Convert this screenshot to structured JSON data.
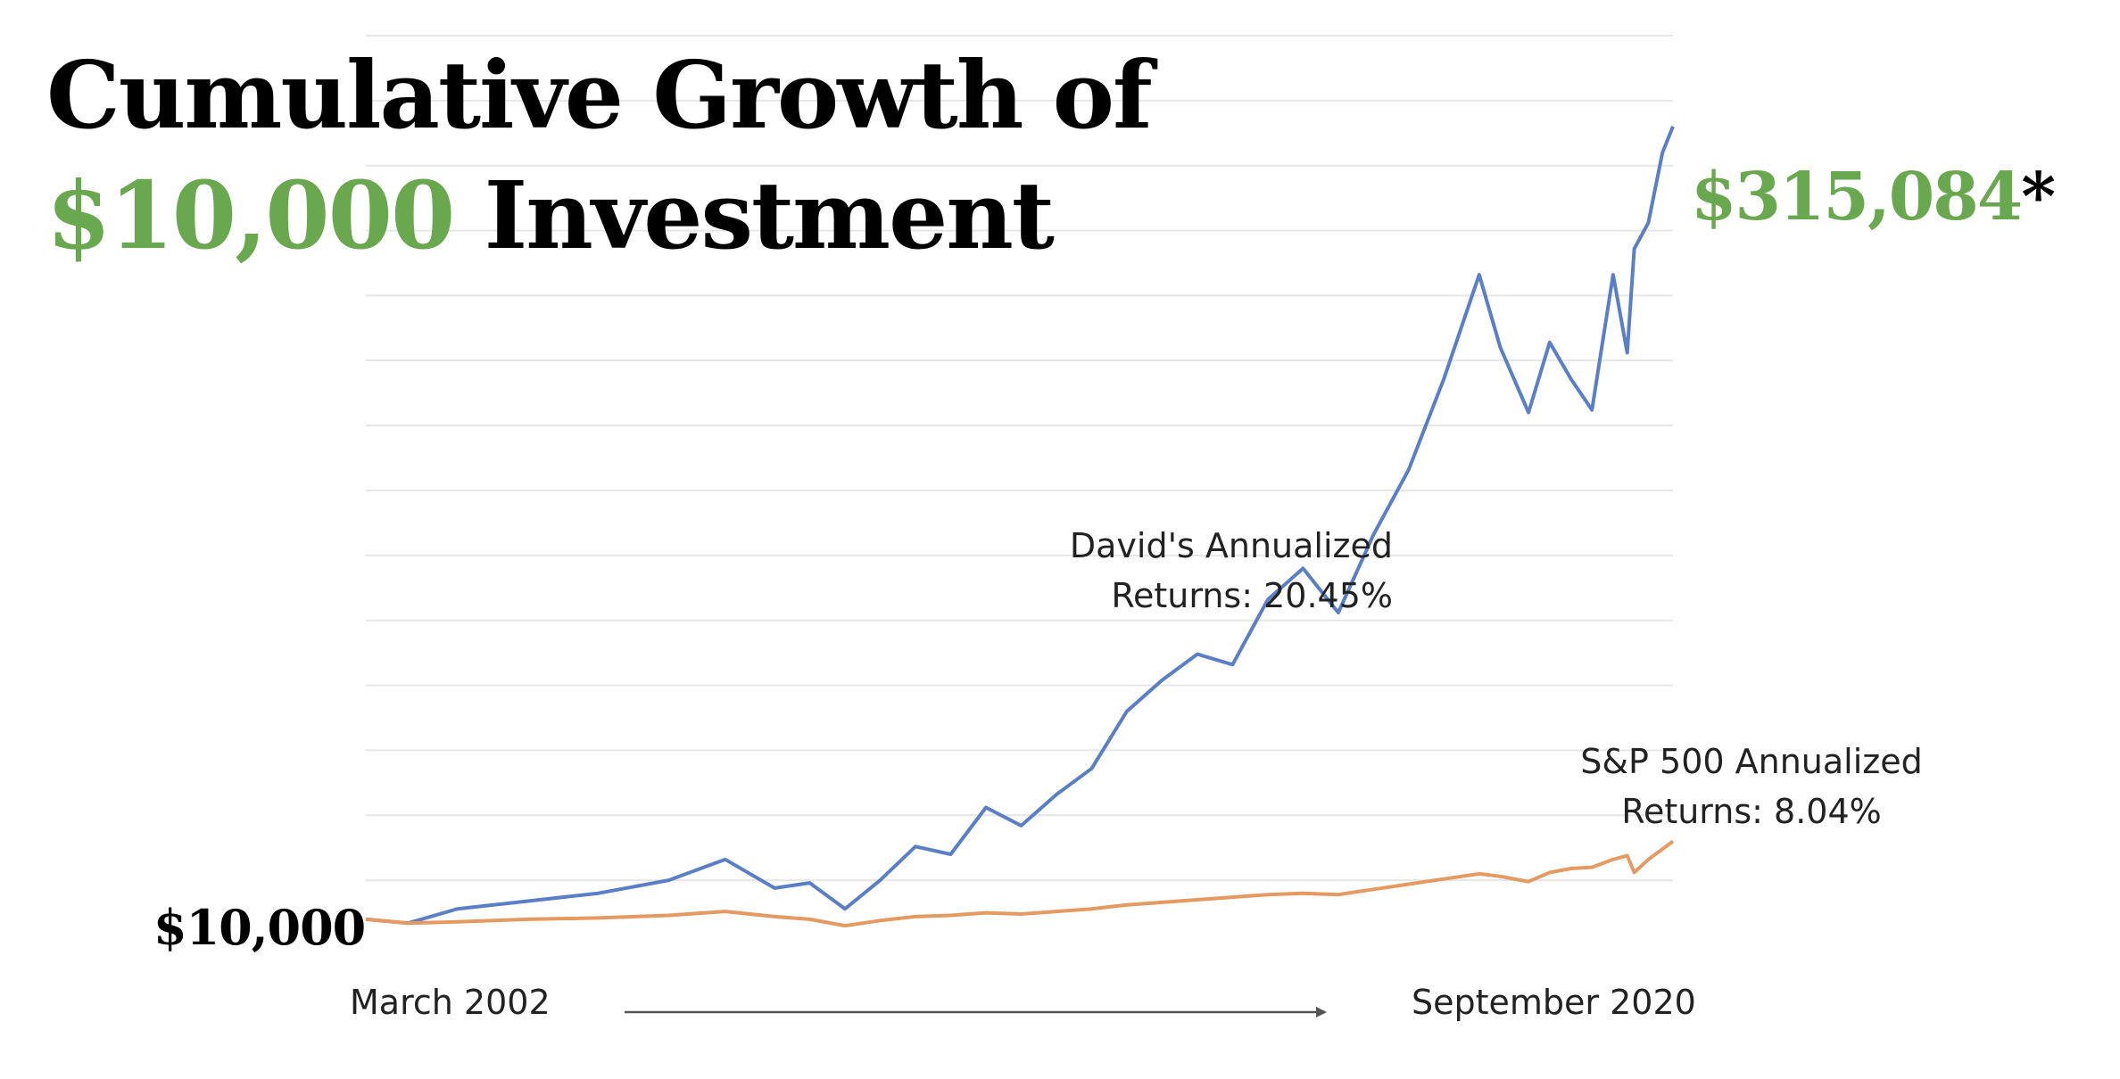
{
  "title": {
    "line1": "Cumulative Growth of",
    "line2_amount": "$10,000",
    "line2_rest": "Investment"
  },
  "end_value": {
    "amount": "$315,084",
    "asterisk": "*"
  },
  "start_value": "$10,000",
  "annotations": {
    "david_line1": "David's Annualized",
    "david_line2": "Returns: 20.45%",
    "sp_line1": "S&P 500 Annualized",
    "sp_line2": "Returns: 8.04%"
  },
  "x_axis": {
    "start_label": "March 2002",
    "end_label": "September 2020"
  },
  "colors": {
    "david": "#5b7fc7",
    "sp500": "#e59a62",
    "accent_green": "#6aa84f",
    "grid": "#e6e6e6",
    "arrow": "#555555"
  },
  "chart_data": {
    "type": "line",
    "title": "Cumulative Growth of $10,000 Investment",
    "xlabel": "",
    "ylabel": "",
    "x_range": [
      "March 2002",
      "September 2020"
    ],
    "ylim": [
      0,
      350000
    ],
    "grid": true,
    "series": [
      {
        "key": "david",
        "x": [
          2002.2,
          2002.8,
          2003.5,
          2004.5,
          2005.5,
          2006.5,
          2007.3,
          2008.0,
          2008.5,
          2009.0,
          2009.5,
          2010.0,
          2010.5,
          2011.0,
          2011.5,
          2012.0,
          2012.5,
          2013.0,
          2013.5,
          2014.0,
          2014.5,
          2015.0,
          2015.5,
          2016.0,
          2016.5,
          2017.0,
          2017.5,
          2018.0,
          2018.3,
          2018.7,
          2019.0,
          2019.3,
          2019.6,
          2019.9,
          2020.1,
          2020.2,
          2020.4,
          2020.6,
          2020.75
        ],
        "y": [
          10000,
          8500,
          14000,
          17000,
          20000,
          25000,
          33000,
          22000,
          24000,
          14000,
          25000,
          38000,
          35000,
          53000,
          46000,
          58000,
          68000,
          90000,
          102000,
          112000,
          108000,
          133000,
          145000,
          128000,
          158000,
          183000,
          218000,
          258000,
          230000,
          205000,
          232000,
          218000,
          206000,
          258000,
          228000,
          268000,
          278000,
          305000,
          315084
        ]
      },
      {
        "key": "sp500",
        "x": [
          2002.2,
          2002.8,
          2003.5,
          2004.5,
          2005.5,
          2006.5,
          2007.3,
          2008.0,
          2008.5,
          2009.0,
          2009.5,
          2010.0,
          2010.5,
          2011.0,
          2011.5,
          2012.0,
          2012.5,
          2013.0,
          2013.5,
          2014.0,
          2014.5,
          2015.0,
          2015.5,
          2016.0,
          2016.5,
          2017.0,
          2017.5,
          2018.0,
          2018.3,
          2018.7,
          2019.0,
          2019.3,
          2019.6,
          2019.9,
          2020.1,
          2020.2,
          2020.4,
          2020.6,
          2020.75
        ],
        "y": [
          10000,
          8500,
          9000,
          10000,
          10500,
          11500,
          13000,
          11000,
          10000,
          7500,
          9500,
          11000,
          11500,
          12500,
          12000,
          13000,
          14000,
          15500,
          16500,
          17500,
          18500,
          19500,
          20000,
          19500,
          21500,
          23500,
          25500,
          27500,
          26500,
          24500,
          28000,
          29500,
          30000,
          33000,
          34500,
          28000,
          33000,
          37000,
          40000
        ]
      }
    ]
  }
}
